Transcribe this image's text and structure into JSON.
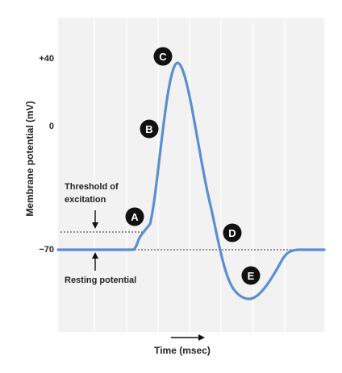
{
  "axes": {
    "y_title": "Membrane potential (mV)",
    "x_title": "Time (msec)",
    "y_ticks": [
      "+40",
      "0",
      "−70"
    ]
  },
  "annotations": {
    "threshold_line1": "Threshold of",
    "threshold_line2": "excitation",
    "resting": "Resting potential"
  },
  "markers": [
    "A",
    "B",
    "C",
    "D",
    "E"
  ],
  "colors": {
    "trace": "#5b8fcf",
    "plot_background": "#f2f2f2",
    "grid": "#ffffff",
    "marker_fill": "#111111",
    "marker_text": "#ffffff",
    "axis_text": "#222222"
  }
}
